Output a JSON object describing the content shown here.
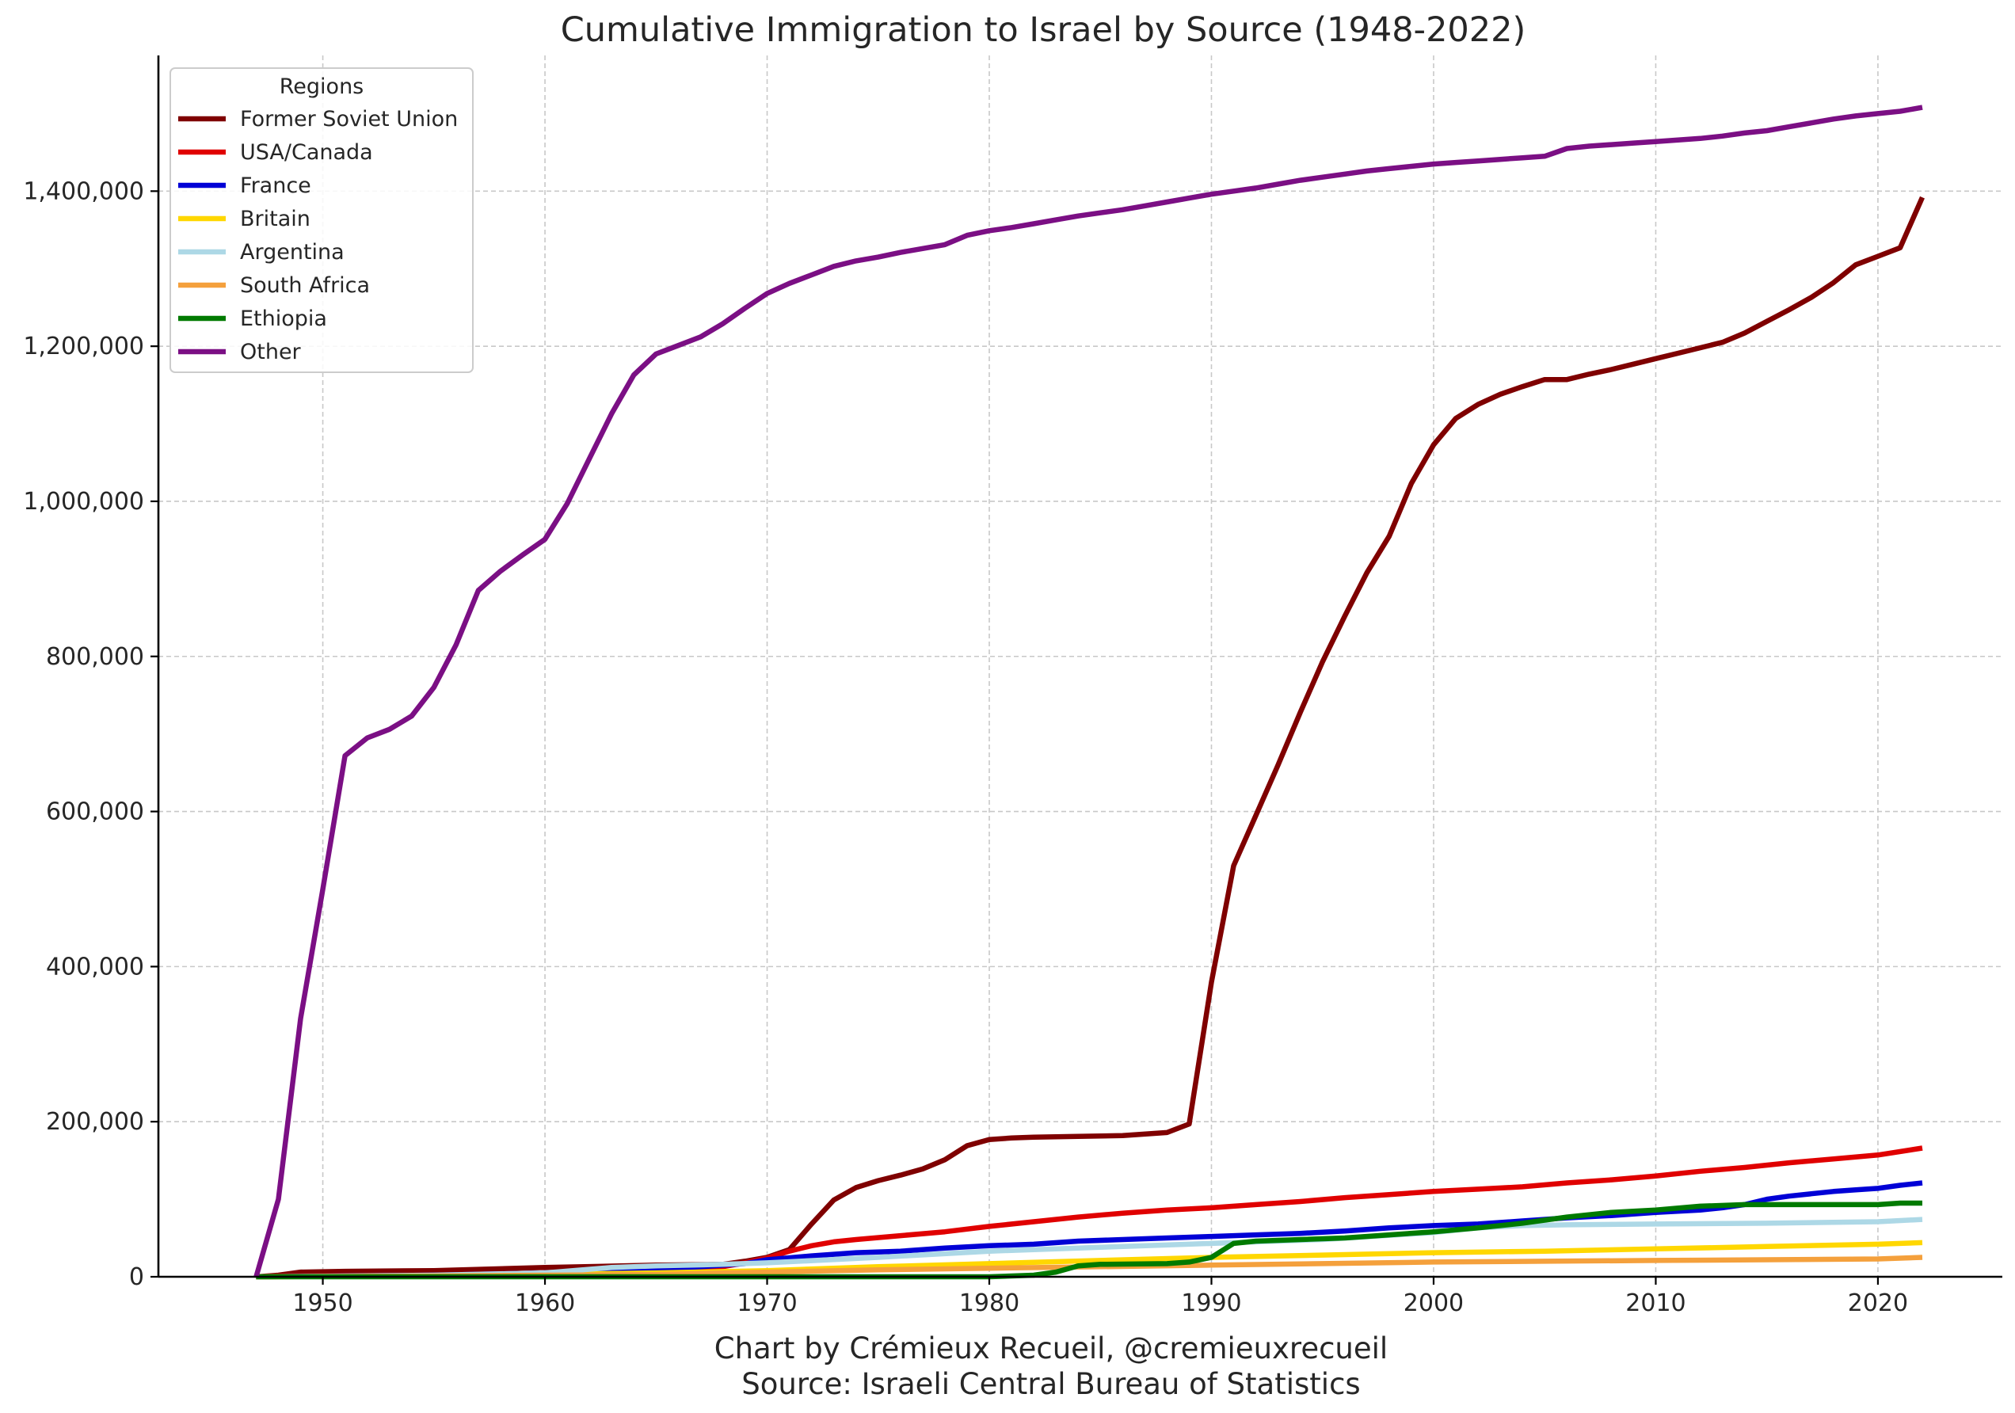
{
  "chart_data": {
    "type": "line",
    "title": "Cumulative Immigration to Israel by Source (1948-2022)",
    "xlabel": "",
    "ylabel": "",
    "xlim": [
      1942.6,
      2025.6
    ],
    "ylim": [
      0,
      1575000
    ],
    "xticks": [
      1950,
      1960,
      1970,
      1980,
      1990,
      2000,
      2010,
      2020
    ],
    "xtick_labels": [
      "1950",
      "1960",
      "1970",
      "1980",
      "1990",
      "2000",
      "2010",
      "2020"
    ],
    "yticks": [
      0,
      200000,
      400000,
      600000,
      800000,
      1000000,
      1200000,
      1400000
    ],
    "ytick_labels": [
      "0",
      "200,000",
      "400,000",
      "600,000",
      "800,000",
      "1,000,000",
      "1,200,000",
      "1,400,000"
    ],
    "grid": true,
    "legend": {
      "title": "Regions",
      "placement": "top-left"
    },
    "footer": [
      "Chart by Crémieux Recueil, @cremieuxrecueil",
      "Source: Israeli Central Bureau of Statistics"
    ],
    "series": [
      {
        "name": "Former Soviet Union",
        "color": "#7f0000",
        "points": [
          [
            1947,
            0
          ],
          [
            1948,
            2000
          ],
          [
            1949,
            6000
          ],
          [
            1951,
            7000
          ],
          [
            1955,
            8000
          ],
          [
            1960,
            12000
          ],
          [
            1965,
            15000
          ],
          [
            1968,
            16000
          ],
          [
            1969,
            20000
          ],
          [
            1970,
            25000
          ],
          [
            1971,
            35000
          ],
          [
            1972,
            68000
          ],
          [
            1973,
            99000
          ],
          [
            1974,
            115000
          ],
          [
            1975,
            124000
          ],
          [
            1976,
            131000
          ],
          [
            1977,
            139000
          ],
          [
            1978,
            151000
          ],
          [
            1979,
            169000
          ],
          [
            1980,
            177000
          ],
          [
            1981,
            179000
          ],
          [
            1982,
            180000
          ],
          [
            1984,
            181000
          ],
          [
            1986,
            182000
          ],
          [
            1988,
            186000
          ],
          [
            1989,
            197000
          ],
          [
            1990,
            380000
          ],
          [
            1991,
            530000
          ],
          [
            1992,
            595000
          ],
          [
            1993,
            660000
          ],
          [
            1994,
            728000
          ],
          [
            1995,
            793000
          ],
          [
            1996,
            852000
          ],
          [
            1997,
            908000
          ],
          [
            1998,
            955000
          ],
          [
            1999,
            1023000
          ],
          [
            2000,
            1073000
          ],
          [
            2001,
            1107000
          ],
          [
            2002,
            1125000
          ],
          [
            2003,
            1138000
          ],
          [
            2004,
            1148000
          ],
          [
            2005,
            1157000
          ],
          [
            2006,
            1157000
          ],
          [
            2007,
            1164000
          ],
          [
            2008,
            1170000
          ],
          [
            2009,
            1177000
          ],
          [
            2010,
            1184000
          ],
          [
            2011,
            1191000
          ],
          [
            2012,
            1198000
          ],
          [
            2013,
            1205000
          ],
          [
            2014,
            1217000
          ],
          [
            2015,
            1232000
          ],
          [
            2016,
            1247000
          ],
          [
            2017,
            1263000
          ],
          [
            2018,
            1282000
          ],
          [
            2019,
            1305000
          ],
          [
            2020,
            1316000
          ],
          [
            2021,
            1327000
          ],
          [
            2022,
            1392000
          ]
        ]
      },
      {
        "name": "USA/Canada",
        "color": "#e00000",
        "points": [
          [
            1947,
            0
          ],
          [
            1955,
            2000
          ],
          [
            1960,
            5000
          ],
          [
            1965,
            8000
          ],
          [
            1968,
            13000
          ],
          [
            1969,
            18000
          ],
          [
            1970,
            24000
          ],
          [
            1971,
            33000
          ],
          [
            1972,
            40000
          ],
          [
            1973,
            45000
          ],
          [
            1974,
            48000
          ],
          [
            1976,
            53000
          ],
          [
            1978,
            58000
          ],
          [
            1980,
            65000
          ],
          [
            1982,
            71000
          ],
          [
            1984,
            77000
          ],
          [
            1986,
            82000
          ],
          [
            1988,
            86000
          ],
          [
            1990,
            89000
          ],
          [
            1992,
            93000
          ],
          [
            1994,
            97000
          ],
          [
            1996,
            102000
          ],
          [
            1998,
            106000
          ],
          [
            2000,
            110000
          ],
          [
            2002,
            113000
          ],
          [
            2004,
            116000
          ],
          [
            2006,
            121000
          ],
          [
            2008,
            125000
          ],
          [
            2010,
            130000
          ],
          [
            2012,
            136000
          ],
          [
            2014,
            141000
          ],
          [
            2016,
            147000
          ],
          [
            2018,
            152000
          ],
          [
            2020,
            157000
          ],
          [
            2022,
            166000
          ]
        ]
      },
      {
        "name": "France",
        "color": "#0000d6",
        "points": [
          [
            1947,
            0
          ],
          [
            1955,
            2000
          ],
          [
            1960,
            5000
          ],
          [
            1965,
            9000
          ],
          [
            1969,
            17000
          ],
          [
            1970,
            22000
          ],
          [
            1972,
            27000
          ],
          [
            1974,
            31000
          ],
          [
            1976,
            33000
          ],
          [
            1978,
            37000
          ],
          [
            1980,
            40000
          ],
          [
            1982,
            42000
          ],
          [
            1984,
            46000
          ],
          [
            1986,
            48000
          ],
          [
            1988,
            50000
          ],
          [
            1990,
            52000
          ],
          [
            1992,
            54000
          ],
          [
            1994,
            56000
          ],
          [
            1996,
            59000
          ],
          [
            1998,
            63000
          ],
          [
            2000,
            66000
          ],
          [
            2002,
            68000
          ],
          [
            2004,
            72000
          ],
          [
            2006,
            76000
          ],
          [
            2008,
            79000
          ],
          [
            2010,
            83000
          ],
          [
            2012,
            86000
          ],
          [
            2013,
            89000
          ],
          [
            2014,
            93000
          ],
          [
            2015,
            100000
          ],
          [
            2016,
            104000
          ],
          [
            2017,
            107000
          ],
          [
            2018,
            110000
          ],
          [
            2019,
            112000
          ],
          [
            2020,
            114000
          ],
          [
            2021,
            118000
          ],
          [
            2022,
            121000
          ]
        ]
      },
      {
        "name": "Britain",
        "color": "#ffd700",
        "points": [
          [
            1947,
            0
          ],
          [
            1955,
            1000
          ],
          [
            1960,
            3000
          ],
          [
            1965,
            5000
          ],
          [
            1970,
            8000
          ],
          [
            1975,
            13000
          ],
          [
            1980,
            17000
          ],
          [
            1985,
            21000
          ],
          [
            1990,
            25000
          ],
          [
            1995,
            28000
          ],
          [
            2000,
            31000
          ],
          [
            2005,
            33000
          ],
          [
            2010,
            36000
          ],
          [
            2015,
            39000
          ],
          [
            2020,
            42000
          ],
          [
            2022,
            44000
          ]
        ]
      },
      {
        "name": "Argentina",
        "color": "#add8e6",
        "points": [
          [
            1947,
            0
          ],
          [
            1955,
            2000
          ],
          [
            1960,
            5000
          ],
          [
            1963,
            12000
          ],
          [
            1965,
            14000
          ],
          [
            1968,
            16000
          ],
          [
            1970,
            18000
          ],
          [
            1975,
            25000
          ],
          [
            1980,
            33000
          ],
          [
            1985,
            38000
          ],
          [
            1990,
            43000
          ],
          [
            1995,
            48000
          ],
          [
            2000,
            57000
          ],
          [
            2002,
            63000
          ],
          [
            2004,
            66000
          ],
          [
            2006,
            67000
          ],
          [
            2010,
            68000
          ],
          [
            2015,
            69000
          ],
          [
            2020,
            71000
          ],
          [
            2022,
            74000
          ]
        ]
      },
      {
        "name": "South Africa",
        "color": "#f4a03c",
        "points": [
          [
            1947,
            0
          ],
          [
            1955,
            1000
          ],
          [
            1960,
            2000
          ],
          [
            1965,
            3000
          ],
          [
            1970,
            6000
          ],
          [
            1975,
            9000
          ],
          [
            1980,
            11000
          ],
          [
            1985,
            13000
          ],
          [
            1990,
            15000
          ],
          [
            1995,
            17000
          ],
          [
            2000,
            19000
          ],
          [
            2005,
            20000
          ],
          [
            2010,
            21000
          ],
          [
            2015,
            22000
          ],
          [
            2020,
            23000
          ],
          [
            2022,
            25000
          ]
        ]
      },
      {
        "name": "Ethiopia",
        "color": "#007a00",
        "points": [
          [
            1947,
            0
          ],
          [
            1980,
            0
          ],
          [
            1982,
            2000
          ],
          [
            1983,
            6000
          ],
          [
            1984,
            14000
          ],
          [
            1985,
            16000
          ],
          [
            1988,
            17000
          ],
          [
            1989,
            19000
          ],
          [
            1990,
            25000
          ],
          [
            1991,
            43000
          ],
          [
            1992,
            46000
          ],
          [
            1994,
            48000
          ],
          [
            1996,
            50000
          ],
          [
            1998,
            54000
          ],
          [
            2000,
            58000
          ],
          [
            2002,
            63000
          ],
          [
            2004,
            69000
          ],
          [
            2006,
            77000
          ],
          [
            2008,
            83000
          ],
          [
            2010,
            86000
          ],
          [
            2012,
            91000
          ],
          [
            2014,
            93000
          ],
          [
            2016,
            93000
          ],
          [
            2018,
            93000
          ],
          [
            2020,
            93000
          ],
          [
            2021,
            95000
          ],
          [
            2022,
            95000
          ]
        ]
      },
      {
        "name": "Other",
        "color": "#7b0f84",
        "points": [
          [
            1947,
            0
          ],
          [
            1948,
            100000
          ],
          [
            1949,
            333000
          ],
          [
            1950,
            500000
          ],
          [
            1951,
            672000
          ],
          [
            1952,
            695000
          ],
          [
            1953,
            706000
          ],
          [
            1954,
            723000
          ],
          [
            1955,
            760000
          ],
          [
            1956,
            815000
          ],
          [
            1957,
            885000
          ],
          [
            1958,
            910000
          ],
          [
            1959,
            931000
          ],
          [
            1960,
            951000
          ],
          [
            1961,
            997000
          ],
          [
            1962,
            1055000
          ],
          [
            1963,
            1113000
          ],
          [
            1964,
            1163000
          ],
          [
            1965,
            1190000
          ],
          [
            1966,
            1201000
          ],
          [
            1967,
            1212000
          ],
          [
            1968,
            1229000
          ],
          [
            1969,
            1249000
          ],
          [
            1970,
            1268000
          ],
          [
            1971,
            1281000
          ],
          [
            1972,
            1292000
          ],
          [
            1973,
            1303000
          ],
          [
            1974,
            1310000
          ],
          [
            1975,
            1315000
          ],
          [
            1976,
            1321000
          ],
          [
            1977,
            1326000
          ],
          [
            1978,
            1331000
          ],
          [
            1979,
            1343000
          ],
          [
            1980,
            1349000
          ],
          [
            1981,
            1353000
          ],
          [
            1982,
            1358000
          ],
          [
            1983,
            1363000
          ],
          [
            1984,
            1368000
          ],
          [
            1985,
            1372000
          ],
          [
            1986,
            1376000
          ],
          [
            1987,
            1381000
          ],
          [
            1988,
            1386000
          ],
          [
            1989,
            1391000
          ],
          [
            1990,
            1396000
          ],
          [
            1991,
            1400000
          ],
          [
            1992,
            1404000
          ],
          [
            1993,
            1409000
          ],
          [
            1994,
            1414000
          ],
          [
            1995,
            1418000
          ],
          [
            1996,
            1422000
          ],
          [
            1997,
            1426000
          ],
          [
            1998,
            1429000
          ],
          [
            1999,
            1432000
          ],
          [
            2000,
            1435000
          ],
          [
            2001,
            1437000
          ],
          [
            2002,
            1439000
          ],
          [
            2003,
            1441000
          ],
          [
            2004,
            1443000
          ],
          [
            2005,
            1445000
          ],
          [
            2006,
            1455000
          ],
          [
            2007,
            1458000
          ],
          [
            2008,
            1460000
          ],
          [
            2009,
            1462000
          ],
          [
            2010,
            1464000
          ],
          [
            2011,
            1466000
          ],
          [
            2012,
            1468000
          ],
          [
            2013,
            1471000
          ],
          [
            2014,
            1475000
          ],
          [
            2015,
            1478000
          ],
          [
            2016,
            1483000
          ],
          [
            2017,
            1488000
          ],
          [
            2018,
            1493000
          ],
          [
            2019,
            1497000
          ],
          [
            2020,
            1500000
          ],
          [
            2021,
            1503000
          ],
          [
            2022,
            1508000
          ]
        ]
      }
    ]
  }
}
